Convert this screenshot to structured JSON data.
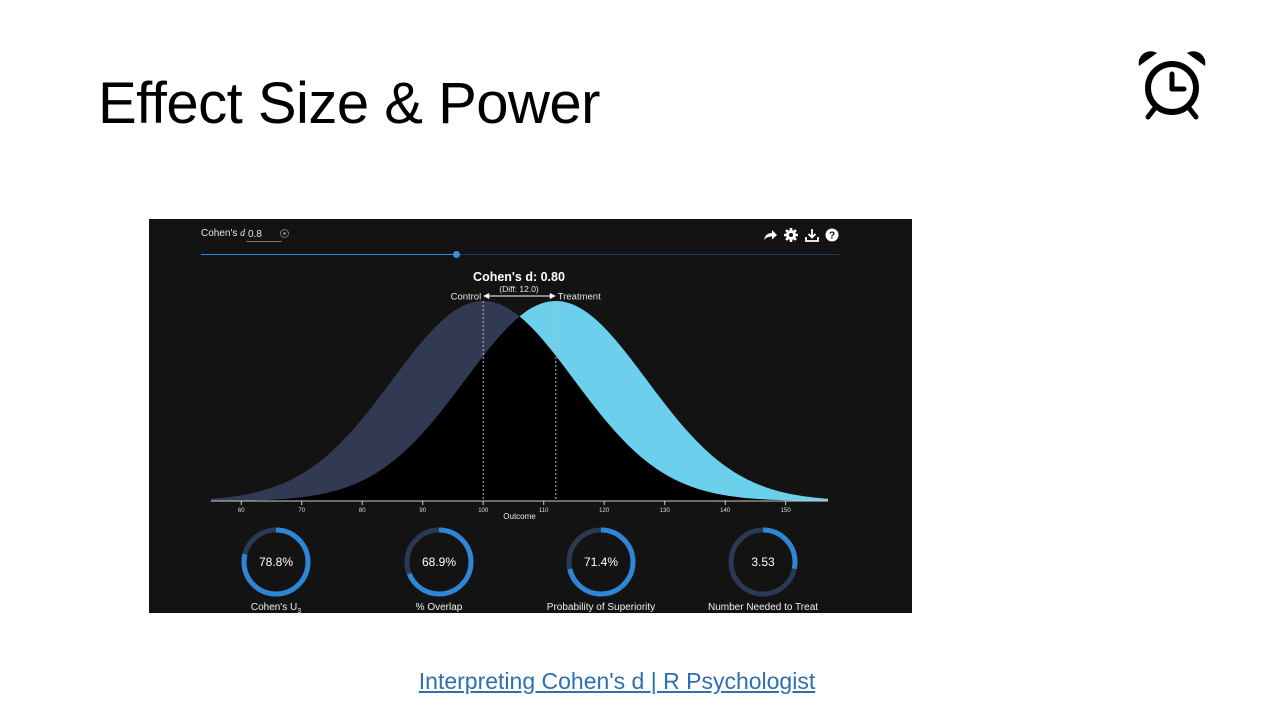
{
  "slide": {
    "title": "Effect Size & Power",
    "link_text": "Interpreting Cohen's d | R Psychologist",
    "alarm_icon": "alarm-clock-icon"
  },
  "colors": {
    "panel_bg": "#131313",
    "control_fill": "#313a52",
    "treatment_fill": "#6ccfec",
    "overlap_fill": "#000000",
    "accent": "#2e86d6",
    "link": "#2f6fb0"
  },
  "controls": {
    "label_prefix": "Cohen's ",
    "label_var": "d",
    "value": "0.8",
    "slider_fraction": 0.4,
    "icons": [
      "share-icon",
      "settings-icon",
      "download-icon",
      "help-icon"
    ]
  },
  "chart_data": {
    "type": "area",
    "title": "Cohen's d: 0.80",
    "subtitle": "(Diff: 12.0)",
    "xlabel": "Outcome",
    "ylabel": "",
    "xlim": [
      55,
      157
    ],
    "x_ticks": [
      60,
      70,
      80,
      90,
      100,
      110,
      120,
      130,
      140,
      150
    ],
    "series": [
      {
        "name": "Control",
        "mean": 100,
        "sd": 15
      },
      {
        "name": "Treatment",
        "mean": 112,
        "sd": 15
      }
    ],
    "grid": false
  },
  "metrics": [
    {
      "value": "78.8%",
      "label": "Cohen's U",
      "sub": "3",
      "fraction": 0.788
    },
    {
      "value": "68.9%",
      "label": "% Overlap",
      "sub": "",
      "fraction": 0.689
    },
    {
      "value": "71.4%",
      "label": "Probability of Superiority",
      "sub": "",
      "fraction": 0.714
    },
    {
      "value": "3.53",
      "label": "Number Needed to Treat",
      "sub": "",
      "fraction": 0.283
    }
  ]
}
